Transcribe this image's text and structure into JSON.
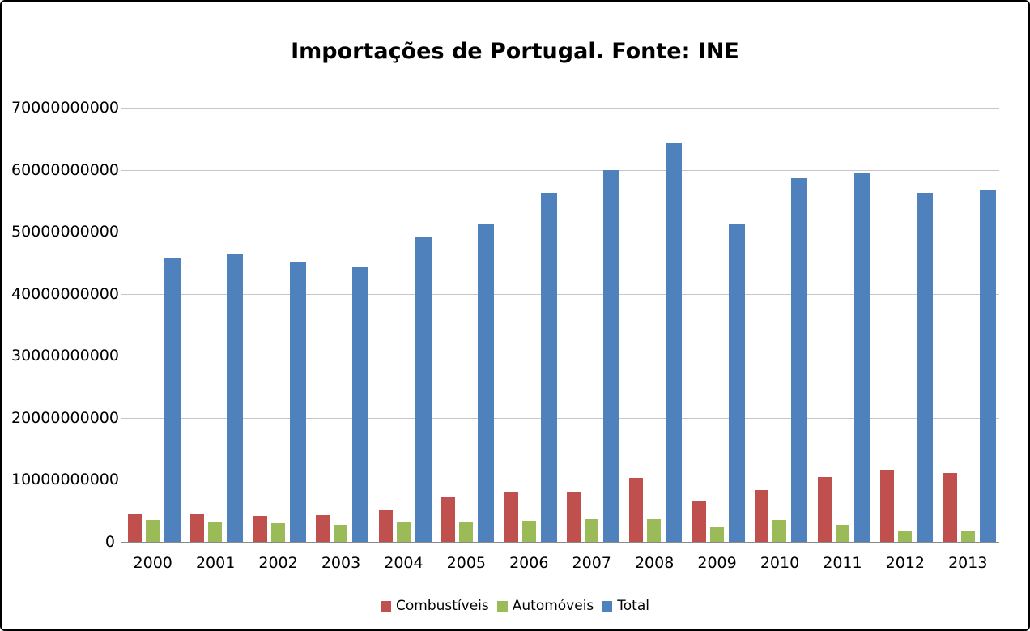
{
  "chart_data": {
    "type": "bar",
    "title": "Importações de Portugal. Fonte: INE",
    "categories": [
      "2000",
      "2001",
      "2002",
      "2003",
      "2004",
      "2005",
      "2006",
      "2007",
      "2008",
      "2009",
      "2010",
      "2011",
      "2012",
      "2013"
    ],
    "series": [
      {
        "name": "Combustíveis",
        "color": "#C0504D",
        "values": [
          4500000000,
          4500000000,
          4200000000,
          4300000000,
          5100000000,
          7200000000,
          8100000000,
          8100000000,
          10300000000,
          6500000000,
          8400000000,
          10400000000,
          11600000000,
          11100000000
        ]
      },
      {
        "name": "Automóveis",
        "color": "#9BBB59",
        "values": [
          3500000000,
          3200000000,
          3000000000,
          2700000000,
          3200000000,
          3100000000,
          3400000000,
          3700000000,
          3700000000,
          2500000000,
          3500000000,
          2800000000,
          1700000000,
          1800000000
        ]
      },
      {
        "name": "Total",
        "color": "#4F81BD",
        "values": [
          45700000000,
          46500000000,
          45000000000,
          44300000000,
          49300000000,
          51300000000,
          56300000000,
          60000000000,
          64200000000,
          51300000000,
          58600000000,
          59500000000,
          56300000000,
          56800000000
        ]
      }
    ],
    "ylim": [
      0,
      70000000000
    ],
    "yticks": [
      0,
      10000000000,
      20000000000,
      30000000000,
      40000000000,
      50000000000,
      60000000000,
      70000000000
    ],
    "xlabel": "",
    "ylabel": "",
    "grid": true,
    "legend_position": "bottom"
  },
  "colors": {
    "gridline": "#C6C6C6",
    "axis_line": "#8A8A8A",
    "frame_border": "#000000",
    "background": "#FFFFFF"
  }
}
